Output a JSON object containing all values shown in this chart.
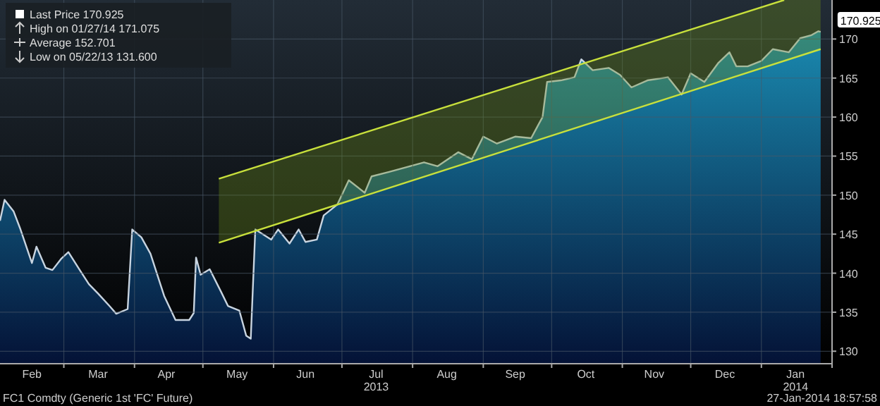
{
  "chart_data": {
    "type": "area",
    "title": "FC1 Comdty (Generic 1st 'FC' Future)",
    "xlim": [
      "2013-02-01",
      "2014-02-01"
    ],
    "ylim": [
      128.4,
      175
    ],
    "yticks": [
      130,
      135,
      140,
      145,
      150,
      155,
      160,
      165,
      170
    ],
    "xticks": [
      {
        "value": "2013-02-15",
        "label": "Feb"
      },
      {
        "value": "2013-03-01",
        "label": null
      },
      {
        "value": "2013-03-16",
        "label": "Mar"
      },
      {
        "value": "2013-04-01",
        "label": null
      },
      {
        "value": "2013-04-15",
        "label": "Apr"
      },
      {
        "value": "2013-05-01",
        "label": null
      },
      {
        "value": "2013-05-16",
        "label": "May"
      },
      {
        "value": "2013-06-01",
        "label": null
      },
      {
        "value": "2013-06-15",
        "label": "Jun"
      },
      {
        "value": "2013-07-01",
        "label": null
      },
      {
        "value": "2013-07-16",
        "label": "Jul\n2013"
      },
      {
        "value": "2013-08-01",
        "label": null
      },
      {
        "value": "2013-08-16",
        "label": "Aug"
      },
      {
        "value": "2013-09-01",
        "label": null
      },
      {
        "value": "2013-09-15",
        "label": "Sep"
      },
      {
        "value": "2013-10-01",
        "label": null
      },
      {
        "value": "2013-10-16",
        "label": "Oct"
      },
      {
        "value": "2013-11-01",
        "label": null
      },
      {
        "value": "2013-11-15",
        "label": "Nov"
      },
      {
        "value": "2013-12-01",
        "label": null
      },
      {
        "value": "2013-12-16",
        "label": "Dec"
      },
      {
        "value": "2014-01-01",
        "label": null
      },
      {
        "value": "2014-01-16",
        "label": "Jan\n2014"
      },
      {
        "value": "2014-02-01",
        "label": null
      }
    ],
    "grid": true,
    "series": [
      {
        "color": "#c8d4e0",
        "x": [
          "2013-02-01",
          "2013-02-03",
          "2013-02-07",
          "2013-02-10",
          "2013-02-15",
          "2013-02-17",
          "2013-02-21",
          "2013-02-24",
          "2013-02-28",
          "2013-03-03",
          "2013-03-08",
          "2013-03-12",
          "2013-03-16",
          "2013-03-21",
          "2013-03-24",
          "2013-03-29",
          "2013-03-31",
          "2013-04-04",
          "2013-04-08",
          "2013-04-14",
          "2013-04-19",
          "2013-04-25",
          "2013-04-27",
          "2013-04-28",
          "2013-04-30",
          "2013-05-04",
          "2013-05-09",
          "2013-05-12",
          "2013-05-17",
          "2013-05-20",
          "2013-05-22",
          "2013-05-24",
          "2013-05-31",
          "2013-06-03",
          "2013-06-08",
          "2013-06-12",
          "2013-06-15",
          "2013-06-20",
          "2013-06-23",
          "2013-06-29",
          "2013-07-04",
          "2013-07-11",
          "2013-07-14",
          "2013-07-22",
          "2013-08-06",
          "2013-08-12",
          "2013-08-21",
          "2013-08-27",
          "2013-09-01",
          "2013-09-07",
          "2013-09-15",
          "2013-09-22",
          "2013-09-27",
          "2013-09-29",
          "2013-10-05",
          "2013-10-11",
          "2013-10-14",
          "2013-10-19",
          "2013-10-26",
          "2013-10-31",
          "2013-11-05",
          "2013-11-12",
          "2013-11-21",
          "2013-11-27",
          "2013-12-01",
          "2013-12-07",
          "2013-12-13",
          "2013-12-18",
          "2013-12-21",
          "2013-12-26",
          "2014-01-01",
          "2014-01-06",
          "2014-01-13",
          "2014-01-18",
          "2014-01-23",
          "2014-01-26",
          "2014-01-27"
        ],
        "values": [
          146.7,
          149.4,
          147.9,
          145.6,
          141.3,
          143.4,
          140.7,
          140.4,
          141.9,
          142.7,
          140.4,
          138.6,
          137.4,
          135.8,
          134.8,
          135.4,
          145.6,
          144.6,
          142.5,
          137.1,
          134.0,
          134.0,
          134.9,
          142.0,
          139.8,
          140.5,
          137.6,
          135.8,
          135.2,
          132.0,
          131.6,
          145.6,
          144.3,
          145.6,
          143.8,
          145.6,
          144.0,
          144.3,
          147.4,
          148.8,
          151.9,
          150.3,
          152.4,
          153.0,
          154.2,
          153.7,
          155.5,
          154.6,
          157.5,
          156.6,
          157.5,
          157.3,
          160.0,
          164.5,
          164.7,
          165.1,
          167.4,
          166.0,
          166.3,
          165.4,
          163.8,
          164.7,
          165.1,
          162.9,
          165.6,
          164.5,
          166.9,
          168.3,
          166.5,
          166.5,
          167.2,
          168.7,
          168.3,
          170.1,
          170.5,
          171.0,
          170.925
        ]
      },
      {
        "type": "line",
        "color": "#c8e03c",
        "x": [
          "2013-05-08",
          "2014-01-11"
        ],
        "values": [
          152.1,
          175
        ]
      },
      {
        "type": "line",
        "color": "#c8e03c",
        "x": [
          "2013-05-08",
          "2014-01-27"
        ],
        "values": [
          143.9,
          168.7
        ]
      }
    ],
    "annotations": [
      "Last Price 170.925",
      "High on 01/27/14 171.075",
      "Average 152.701",
      "Low on 05/22/13 131.600",
      "27-Jan-2014 18:57:58",
      {
        "text": "170.925",
        "x": "2014-01-27",
        "y": 170.925
      }
    ]
  }
}
